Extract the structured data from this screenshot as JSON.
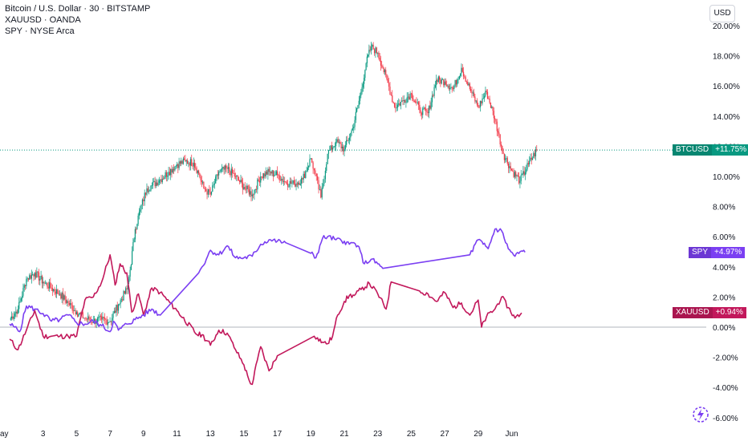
{
  "legend": {
    "btc": "Bitcoin / U.S. Dollar · 30 · BITSTAMP",
    "xau": "XAUUSD · OANDA",
    "spy": "SPY · NYSE Arca"
  },
  "currency_button": "USD",
  "badges": {
    "btc": {
      "symbol": "BTCUSD",
      "value": "+11.75%"
    },
    "spy": {
      "symbol": "SPY",
      "value": "+4.97%"
    },
    "xau": {
      "symbol": "XAUUSD",
      "value": "+0.94%"
    }
  },
  "colors": {
    "btc_up": "#089981",
    "btc_down": "#f23645",
    "spy": "#7b3ff2",
    "xau": "#c2185b",
    "btc_badge": "#089981",
    "spy_badge": "#7b3ff2",
    "xau_badge": "#c2185b",
    "grid_zero": "#b2b5be"
  },
  "chart_data": {
    "type": "line",
    "ylim": [
      -6,
      20
    ],
    "y_ticks": [
      "20.00%",
      "18.00%",
      "16.00%",
      "14.00%",
      "12.00%",
      "10.00%",
      "8.00%",
      "6.00%",
      "4.00%",
      "2.00%",
      "0.00%",
      "-2.00%",
      "-4.00%",
      "-6.00%"
    ],
    "x_ticks": [
      "ay",
      "3",
      "5",
      "7",
      "9",
      "11",
      "13",
      "15",
      "17",
      "19",
      "21",
      "23",
      "25",
      "27",
      "29",
      "Jun"
    ],
    "x_tick_days": [
      1,
      3,
      5,
      7,
      9,
      11,
      13,
      15,
      17,
      19,
      21,
      23,
      25,
      27,
      29,
      31
    ],
    "last_value_btc": 11.75,
    "series": [
      {
        "name": "BTCUSD",
        "style": "candles",
        "x": [
          1,
          1.5,
          2,
          2.5,
          3,
          3.5,
          4,
          4.5,
          5,
          5.5,
          6,
          6.5,
          7,
          7.5,
          8,
          8.2,
          8.5,
          8.8,
          9.2,
          9.5,
          10,
          10.5,
          11,
          11.5,
          12,
          12.3,
          12.6,
          13,
          13.5,
          14,
          14.5,
          15,
          15.5,
          16,
          16.5,
          17,
          17.5,
          18,
          18.5,
          19,
          19.2,
          19.6,
          20,
          20.5,
          21,
          21.5,
          22,
          22.3,
          22.6,
          23,
          23.3,
          23.6,
          24,
          24.5,
          25,
          25.5,
          26,
          26.5,
          27,
          27.5,
          28,
          28.5,
          29,
          29.5,
          30,
          30.5,
          31,
          31.5,
          32,
          32.5
        ],
        "values": [
          0.5,
          1.2,
          3.2,
          3.6,
          3.0,
          2.6,
          2.2,
          1.6,
          1.0,
          0.6,
          0.4,
          0.5,
          0.4,
          1.5,
          2.5,
          3.8,
          6.5,
          7.8,
          9.2,
          9.4,
          9.8,
          10.3,
          10.8,
          11.0,
          10.9,
          10.2,
          9.2,
          8.8,
          10.3,
          10.5,
          10.0,
          9.3,
          8.8,
          10.0,
          10.3,
          10.1,
          9.6,
          9.5,
          9.8,
          11.2,
          10.4,
          8.6,
          11.5,
          12.3,
          11.8,
          13.2,
          15.6,
          17.5,
          18.6,
          18.2,
          17.2,
          16.2,
          14.6,
          15.0,
          15.5,
          14.4,
          14.2,
          16.4,
          16.3,
          15.8,
          17.2,
          15.8,
          14.6,
          15.6,
          13.8,
          11.5,
          10.4,
          9.7,
          10.8,
          11.75
        ]
      },
      {
        "name": "SPY",
        "style": "line",
        "x": [
          1,
          1.3,
          1.6,
          2,
          2.5,
          3,
          3.5,
          4,
          4.5,
          5,
          5.5,
          6,
          6.5,
          7,
          7.2,
          7.5,
          8,
          8.5,
          9,
          9.5,
          10,
          12.3,
          12.5,
          13,
          13.5,
          14,
          14.5,
          15,
          15.5,
          16,
          16.5,
          17,
          17.5,
          19,
          19.3,
          19.7,
          20,
          20.5,
          21,
          21.3,
          21.5,
          21.8,
          22.2,
          22.6,
          23,
          23.3,
          28.5,
          29,
          29.3,
          29.6,
          30,
          30.4,
          30.8,
          31.2,
          31.5,
          31.8
        ],
        "values": [
          0.2,
          0.0,
          -0.3,
          1.4,
          1.2,
          0.9,
          0.4,
          0.5,
          0.8,
          0.3,
          0.2,
          0.4,
          0.1,
          -0.3,
          0.4,
          -0.2,
          0.2,
          0.5,
          0.8,
          1.2,
          0.8,
          3.6,
          4.0,
          5.1,
          4.8,
          5.4,
          4.6,
          4.6,
          4.7,
          5.5,
          5.8,
          5.7,
          5.6,
          4.9,
          4.6,
          5.9,
          6.0,
          5.8,
          5.7,
          5.5,
          5.6,
          5.4,
          4.2,
          4.5,
          4.2,
          3.9,
          4.8,
          5.8,
          5.5,
          5.2,
          6.5,
          6.4,
          5.2,
          4.7,
          5.0,
          4.97
        ]
      },
      {
        "name": "XAUUSD",
        "style": "line",
        "x": [
          1,
          1.5,
          2,
          2.5,
          3,
          3.5,
          4,
          4.5,
          5,
          5.5,
          6,
          6.5,
          7,
          7.3,
          7.6,
          8,
          8.3,
          8.7,
          9,
          9.5,
          10,
          11,
          12.2,
          12.5,
          13,
          13.5,
          14,
          14.5,
          15,
          15.3,
          15.5,
          15.8,
          16,
          16.5,
          17,
          19.2,
          19.4,
          19.7,
          20,
          20.3,
          20.6,
          21,
          21.3,
          21.6,
          22,
          22.5,
          23,
          23.5,
          23.8,
          25.5,
          26,
          26.5,
          27,
          27.5,
          28,
          28.5,
          29,
          29.2,
          29.5,
          30,
          30.4,
          30.8,
          31.2,
          31.6
        ],
        "values": [
          -0.8,
          -1.5,
          -0.2,
          1.1,
          -0.6,
          -0.6,
          -0.6,
          -0.6,
          -0.6,
          1.8,
          2.0,
          3.0,
          4.8,
          2.8,
          4.2,
          3.6,
          1.0,
          2.2,
          0.8,
          2.6,
          2.3,
          1.1,
          -0.5,
          -0.5,
          -1.2,
          -0.2,
          -0.4,
          -1.5,
          -2.5,
          -3.5,
          -3.8,
          -2.2,
          -1.3,
          -2.9,
          -1.9,
          -0.6,
          -0.7,
          -1.0,
          -1.1,
          -0.6,
          0.8,
          1.7,
          2.1,
          2.1,
          2.5,
          2.9,
          2.2,
          1.2,
          3.0,
          2.4,
          2.2,
          1.7,
          2.3,
          1.3,
          1.6,
          0.8,
          1.8,
          0.0,
          0.7,
          1.2,
          2.0,
          1.3,
          0.6,
          0.94
        ]
      }
    ]
  }
}
